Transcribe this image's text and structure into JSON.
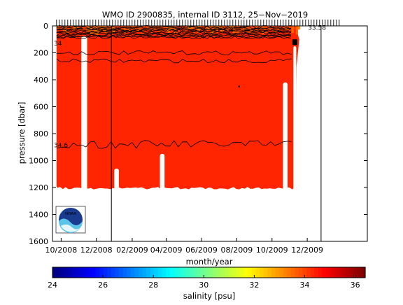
{
  "chart_data": {
    "type": "heatmap",
    "title": "WMO ID 2900835, internal ID 3112, 25−Nov−2019",
    "xlabel": "month/year",
    "ylabel": "pressure [dbar]",
    "x_ticks": [
      "10/2008",
      "12/2008",
      "02/2009",
      "04/2009",
      "06/2009",
      "08/2009",
      "10/2009",
      "12/2009"
    ],
    "y_ticks": [
      0,
      200,
      400,
      600,
      800,
      1000,
      1200,
      1400,
      1600
    ],
    "ylim": [
      0,
      1600
    ],
    "y_reversed": true,
    "colorbar": {
      "label": "salinity [psu]",
      "ticks": [
        24,
        26,
        28,
        30,
        32,
        34,
        36
      ],
      "range": [
        24,
        36.4
      ],
      "colormap": "jet"
    },
    "contour_labels": [
      {
        "text": "34",
        "pressure": 125
      },
      {
        "text": "34.6",
        "pressure": 880
      },
      {
        "text": "33.58",
        "pressure": 50
      }
    ],
    "dominant_salinity": 34.4,
    "surface_salinity_range": [
      33.3,
      34.2
    ],
    "profile_depth_max_dbar": 1200,
    "data_gaps": [
      {
        "from": "2008-11-05",
        "to": "2008-11-15",
        "pressure_top": 75,
        "pressure_bottom": 1200
      },
      {
        "from": "2009-01-01",
        "to": "2009-01-09",
        "pressure_top": 1060,
        "pressure_bottom": 1200
      },
      {
        "from": "2009-03-21",
        "to": "2009-03-29",
        "pressure_top": 950,
        "pressure_bottom": 1200
      },
      {
        "from": "2009-10-20",
        "to": "2009-10-28",
        "pressure_top": 420,
        "pressure_bottom": 1200
      },
      {
        "from": "2009-11-07",
        "to": "2009-11-12",
        "pressure_top": 150,
        "pressure_bottom": 1200
      }
    ],
    "data_end": "2009-11-15",
    "vertical_markers": [
      "2008-12-27",
      "2009-12-25"
    ],
    "logo": "NOAA"
  },
  "colors": {
    "field": "#ff2200",
    "surface": "#ff8a00",
    "contour": "#000000"
  }
}
